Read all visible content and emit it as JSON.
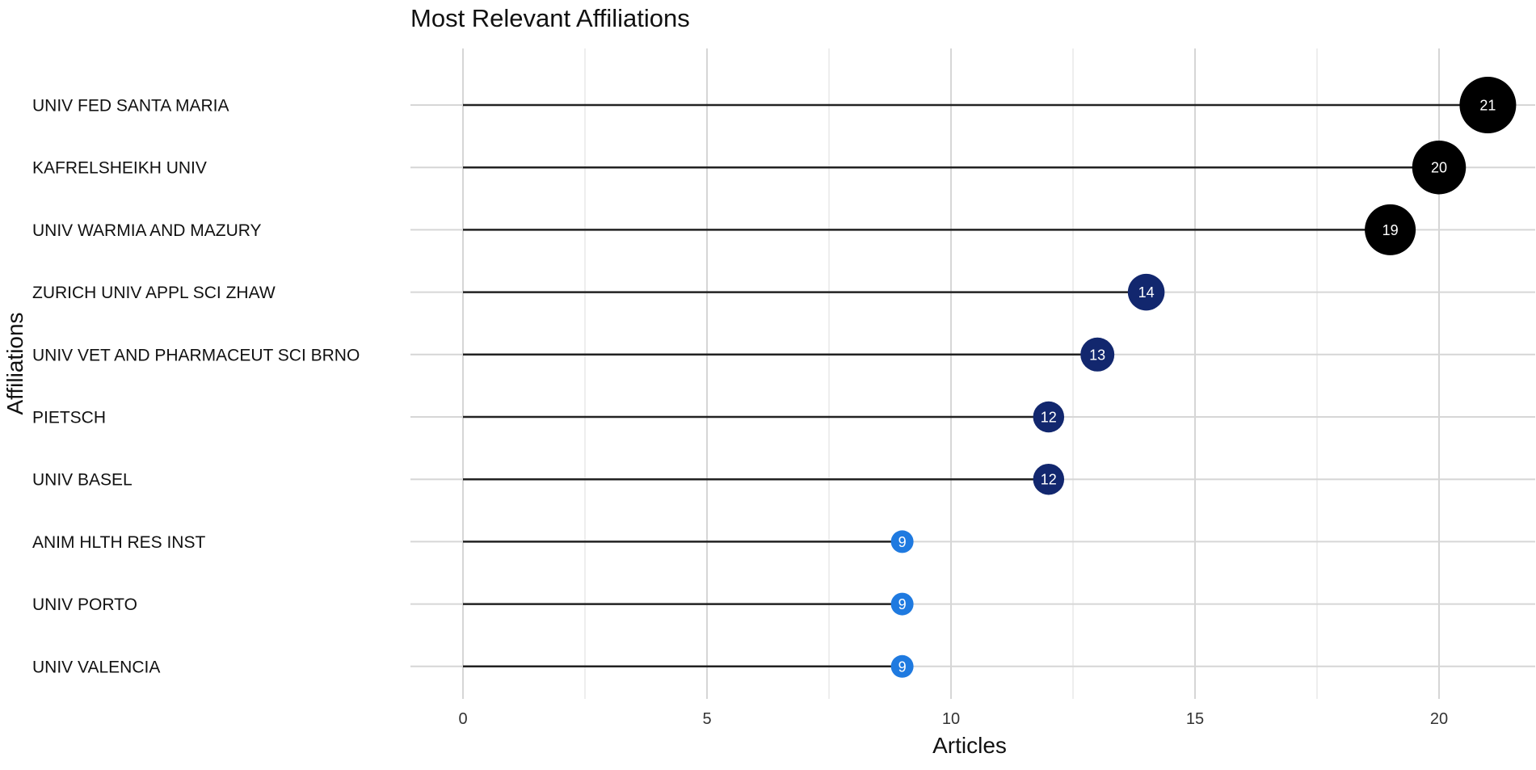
{
  "chart_data": {
    "type": "lollipop",
    "title": "Most Relevant Affiliations",
    "xlabel": "Articles",
    "ylabel": "Affiliations",
    "xlim": [
      0,
      22
    ],
    "x_ticks": [
      0,
      5,
      10,
      15,
      20
    ],
    "grid": true,
    "legend": "none",
    "categories": [
      "UNIV FED SANTA MARIA",
      "KAFRELSHEIKH UNIV",
      "UNIV WARMIA AND MAZURY",
      "ZURICH UNIV APPL SCI ZHAW",
      "UNIV VET AND PHARMACEUT SCI BRNO",
      "PIETSCH",
      "UNIV BASEL",
      "ANIM HLTH RES INST",
      "UNIV PORTO",
      "UNIV VALENCIA"
    ],
    "values": [
      21,
      20,
      19,
      14,
      13,
      12,
      12,
      9,
      9,
      9
    ],
    "value_labels": [
      "21",
      "20",
      "19",
      "14",
      "13",
      "12",
      "12",
      "9",
      "9",
      "9"
    ],
    "tick_labels": [
      "0",
      "5",
      "10",
      "15",
      "20"
    ],
    "colors": {
      "low": "#1f7ae0",
      "mid": "#12276e",
      "high": "#000000",
      "grid_major": "#d6d6d6",
      "grid_minor": "#e9e9e9",
      "stem": "#222222"
    }
  }
}
